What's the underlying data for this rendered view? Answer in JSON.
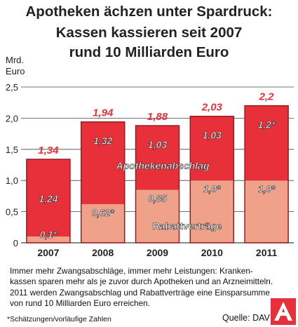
{
  "title_lines": [
    "Apotheken ächzen unter Spardruck:",
    "Kassen kassieren seit 2007",
    "rund 10 Milliarden Euro"
  ],
  "caption_lines": [
    "Immer mehr Zwangsabschläge, immer mehr Leistungen: Kranken-",
    "kassen sparen mehr als je zuvor durch Apotheken und an Arzneimitteln.",
    "2011 werden Zwangsabschlag und Rabattverträge eine Einsparsumme",
    "von rund 10 Milliarden Euro erreichen."
  ],
  "footnote": "*Schätzungen/vorläufige Zahlen",
  "source": "Quelle: DAV",
  "logo_letter": "A",
  "chart_data": {
    "type": "bar",
    "stacked": true,
    "categories": [
      "2007",
      "2008",
      "2009",
      "2010",
      "2011"
    ],
    "ylabel": [
      "Mrd.",
      "Euro"
    ],
    "ylim": [
      0,
      2.5
    ],
    "yticks": [
      0,
      0.5,
      1.0,
      1.5,
      2.0,
      2.5
    ],
    "ytick_labels": [
      "0",
      "0,5",
      "1,0",
      "1,5",
      "2,0",
      "2,5"
    ],
    "grid": true,
    "series": [
      {
        "name": "Rabattverträge",
        "values": [
          0.1,
          0.62,
          0.85,
          1.0,
          1.0
        ],
        "labels": [
          "0,1*",
          "0,62*",
          "0,85",
          "1,0*",
          "1,0*"
        ],
        "color": "#f0a18a"
      },
      {
        "name": "Apothekenabschlag",
        "values": [
          1.24,
          1.32,
          1.03,
          1.03,
          1.2
        ],
        "labels": [
          "1,24",
          "1,32",
          "1,03",
          "1,03",
          "1,2*"
        ],
        "color": "#e8303a"
      }
    ],
    "totals": [
      1.34,
      1.94,
      1.88,
      2.03,
      2.2
    ],
    "total_labels": [
      "1,34",
      "1,94",
      "1,88",
      "2,03",
      "2,2"
    ],
    "colors": {
      "total_text": "#e8303a",
      "bar_stroke": "#9a1a20",
      "grid": "#444444",
      "axis_text": "#222222"
    }
  }
}
